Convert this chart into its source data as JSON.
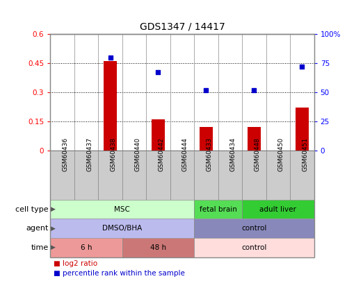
{
  "title": "GDS1347 / 14417",
  "samples": [
    "GSM60436",
    "GSM60437",
    "GSM60438",
    "GSM60440",
    "GSM60442",
    "GSM60444",
    "GSM60433",
    "GSM60434",
    "GSM60448",
    "GSM60450",
    "GSM60451"
  ],
  "log2_ratio": [
    0,
    0,
    0.46,
    0,
    0.16,
    0,
    0.12,
    0,
    0.12,
    0,
    0.22
  ],
  "percentile_rank": [
    null,
    null,
    80,
    null,
    67,
    null,
    52,
    null,
    52,
    null,
    72
  ],
  "bar_color": "#cc0000",
  "dot_color": "#0000cc",
  "ylim_left": [
    0,
    0.6
  ],
  "ylim_right": [
    0,
    100
  ],
  "yticks_left": [
    0,
    0.15,
    0.3,
    0.45,
    0.6
  ],
  "yticks_right": [
    0,
    25,
    50,
    75,
    100
  ],
  "ytick_labels_left": [
    "0",
    "0.15",
    "0.3",
    "0.45",
    "0.6"
  ],
  "ytick_labels_right": [
    "0",
    "25",
    "50",
    "75",
    "100%"
  ],
  "cell_type_groups": [
    {
      "label": "MSC",
      "start": 0,
      "end": 6,
      "color": "#ccffcc"
    },
    {
      "label": "fetal brain",
      "start": 6,
      "end": 8,
      "color": "#55dd55"
    },
    {
      "label": "adult liver",
      "start": 8,
      "end": 11,
      "color": "#33cc33"
    }
  ],
  "agent_groups": [
    {
      "label": "DMSO/BHA",
      "start": 0,
      "end": 6,
      "color": "#bbbbee"
    },
    {
      "label": "control",
      "start": 6,
      "end": 11,
      "color": "#8888bb"
    }
  ],
  "time_groups": [
    {
      "label": "6 h",
      "start": 0,
      "end": 3,
      "color": "#ee9999"
    },
    {
      "label": "48 h",
      "start": 3,
      "end": 6,
      "color": "#cc7777"
    },
    {
      "label": "control",
      "start": 6,
      "end": 11,
      "color": "#ffdddd"
    }
  ],
  "row_labels": [
    "cell type",
    "agent",
    "time"
  ],
  "legend_red": "log2 ratio",
  "legend_blue": "percentile rank within the sample",
  "n_samples": 11,
  "sample_box_color": "#cccccc",
  "outer_border_color": "#aaaaaa"
}
